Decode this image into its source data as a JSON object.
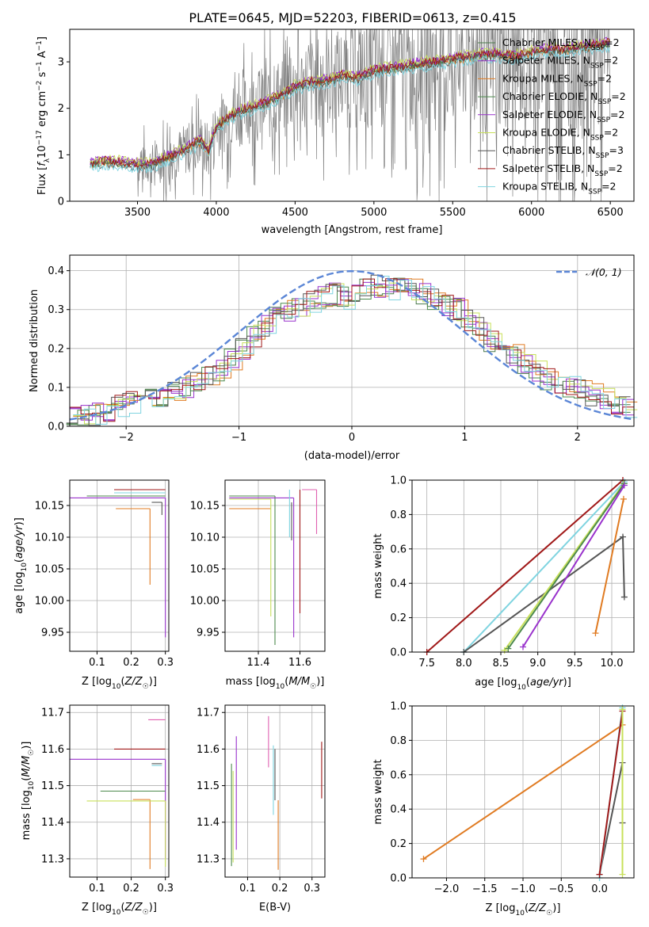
{
  "title": "PLATE=0645, MJD=52203, FIBERID=0613, z=0.415",
  "colors": {
    "Chabrier MILES": "#4a7a4a",
    "Salpeter MILES": "#9932cc",
    "Kroupa MILES": "#e07b22",
    "Chabrier ELODIE": "#4d8a4d",
    "Salpeter ELODIE": "#9932cc",
    "Kroupa ELODIE": "#c8e05a",
    "Chabrier STELIB": "#555555",
    "Salpeter STELIB": "#a01818",
    "Kroupa STELIB": "#7fd4e0",
    "data": "#808080",
    "normal": "#5b86d6",
    "pink": "#e060b0"
  },
  "chart_data": [
    {
      "type": "line",
      "title": "PLATE=0645, MJD=52203, FIBERID=0613, z=0.415",
      "xlabel": "wavelength [Angstrom, rest frame]",
      "ylabel": "Flux [f_λ 10^-17 erg cm^-2 s^-1 A^-1]",
      "xlim": [
        3070,
        6650
      ],
      "ylim": [
        0,
        3.7
      ],
      "xticks": [
        3500,
        4000,
        4500,
        5000,
        5500,
        6000,
        6500
      ],
      "yticks": [
        0,
        1,
        2,
        3
      ],
      "legend_position": "top-right",
      "legend": [
        "Chabrier MILES, N_SSP=2",
        "Salpeter MILES, N_SSP=2",
        "Kroupa MILES, N_SSP=2",
        "Chabrier ELODIE, N_SSP=2",
        "Salpeter ELODIE, N_SSP=2",
        "Kroupa ELODIE, N_SSP=2",
        "Chabrier STELIB, N_SSP=3",
        "Salpeter STELIB, N_SSP=2",
        "Kroupa STELIB, N_SSP=2"
      ],
      "model_continuum": {
        "x": [
          3200,
          3300,
          3400,
          3500,
          3600,
          3700,
          3800,
          3900,
          3950,
          4000,
          4100,
          4200,
          4300,
          4400,
          4500,
          4600,
          4700,
          4800,
          4900,
          5000,
          5100,
          5200,
          5300,
          5400,
          5500,
          5600,
          5700,
          5800,
          5900,
          6000,
          6100,
          6200,
          6300,
          6400,
          6500
        ],
        "y": [
          0.8,
          0.85,
          0.82,
          0.78,
          0.8,
          0.95,
          1.1,
          1.3,
          1.05,
          1.6,
          1.85,
          2.0,
          2.1,
          2.25,
          2.45,
          2.55,
          2.6,
          2.7,
          2.65,
          2.8,
          2.85,
          2.9,
          2.95,
          3.0,
          3.05,
          3.1,
          3.15,
          3.15,
          3.1,
          3.2,
          3.25,
          3.25,
          3.3,
          3.35,
          3.4
        ]
      }
    },
    {
      "type": "step",
      "xlabel": "(data-model)/error",
      "ylabel": "Normed distribution",
      "xlim": [
        -2.5,
        2.5
      ],
      "ylim": [
        0,
        0.44
      ],
      "xticks": [
        -2,
        -1,
        0,
        1,
        2
      ],
      "yticks": [
        0.0,
        0.1,
        0.2,
        0.3,
        0.4
      ],
      "legend": [
        "𝒩(0, 1)"
      ],
      "legend_position": "top-right",
      "bins": [
        -2.5,
        -2.4,
        -2.3,
        -2.2,
        -2.1,
        -2.0,
        -1.9,
        -1.8,
        -1.7,
        -1.6,
        -1.5,
        -1.4,
        -1.3,
        -1.2,
        -1.1,
        -1.0,
        -0.9,
        -0.8,
        -0.7,
        -0.6,
        -0.5,
        -0.4,
        -0.3,
        -0.2,
        -0.1,
        0.0,
        0.1,
        0.2,
        0.3,
        0.4,
        0.5,
        0.6,
        0.7,
        0.8,
        0.9,
        1.0,
        1.1,
        1.2,
        1.3,
        1.4,
        1.5,
        1.6,
        1.7,
        1.8,
        1.9,
        2.0,
        2.1,
        2.2,
        2.3,
        2.4,
        2.5
      ],
      "approx_hist": [
        0.02,
        0.025,
        0.03,
        0.04,
        0.05,
        0.06,
        0.06,
        0.07,
        0.08,
        0.09,
        0.1,
        0.12,
        0.13,
        0.14,
        0.17,
        0.2,
        0.23,
        0.26,
        0.28,
        0.3,
        0.31,
        0.32,
        0.33,
        0.34,
        0.33,
        0.34,
        0.35,
        0.36,
        0.35,
        0.36,
        0.35,
        0.34,
        0.33,
        0.31,
        0.3,
        0.27,
        0.25,
        0.22,
        0.2,
        0.18,
        0.16,
        0.14,
        0.12,
        0.11,
        0.1,
        0.09,
        0.08,
        0.07,
        0.06,
        0.05
      ]
    },
    {
      "type": "errorbar",
      "xlabel": "Z [log10(Z/Z☉)]",
      "ylabel": "age  [log10(age/yr)]",
      "xlim": [
        0.02,
        0.31
      ],
      "ylim": [
        9.92,
        10.19
      ],
      "xticks": [
        0.1,
        0.2,
        0.3
      ],
      "yticks": [
        9.95,
        10.0,
        10.05,
        10.1,
        10.15
      ],
      "points": [
        {
          "model": "Salpeter STELIB",
          "x": 0.3,
          "y": 10.175,
          "xerr_lo": 0.15,
          "yerr_lo": 0.0
        },
        {
          "model": "Kroupa STELIB",
          "x": 0.3,
          "y": 10.17,
          "xerr_lo": 0.15,
          "yerr_lo": 0.0
        },
        {
          "model": "Chabrier ELODIE",
          "x": 0.3,
          "y": 10.165,
          "xerr_lo": 0.23,
          "yerr_lo": 0.0
        },
        {
          "model": "Salpeter MILES",
          "x": 0.3,
          "y": 10.162,
          "xerr_lo": 0.28,
          "yerr_lo": 0.22
        },
        {
          "model": "Chabrier STELIB",
          "x": 0.29,
          "y": 10.155,
          "xerr_lo": 0.03,
          "yerr_lo": 0.02
        },
        {
          "model": "Kroupa MILES",
          "x": 0.255,
          "y": 10.145,
          "xerr_lo": 0.1,
          "yerr_lo": 0.12
        }
      ]
    },
    {
      "type": "errorbar",
      "xlabel": "mass [log10(M/M☉)]",
      "xlim": [
        11.24,
        11.72
      ],
      "ylim": [
        9.92,
        10.19
      ],
      "xticks": [
        11.4,
        11.6
      ],
      "yticks": [
        9.95,
        10.0,
        10.05,
        10.1,
        10.15
      ],
      "points": [
        {
          "model": "Kroupa MILES",
          "x": 11.46,
          "y": 10.145,
          "xerr_lo": 0.2,
          "yerr_lo": 0.0
        },
        {
          "model": "Chabrier ELODIE",
          "x": 11.48,
          "y": 10.165,
          "xerr_lo": 0.22,
          "yerr_lo": 0.235
        },
        {
          "model": "Kroupa ELODIE",
          "x": 11.46,
          "y": 10.16,
          "xerr_lo": 0.2,
          "yerr_lo": 0.185
        },
        {
          "model": "Salpeter ELODIE",
          "x": 11.57,
          "y": 10.162,
          "xerr_lo": 0.31,
          "yerr_lo": 0.22
        },
        {
          "model": "Salpeter STELIB",
          "x": 11.6,
          "y": 10.175,
          "xerr_lo": 0.0,
          "yerr_lo": 0.195
        },
        {
          "model": "Chabrier STELIB",
          "x": 11.56,
          "y": 10.155,
          "xerr_lo": 0.0,
          "yerr_lo": 0.06
        },
        {
          "model": "Kroupa STELIB",
          "x": 11.55,
          "y": 10.175,
          "xerr_lo": 0.0,
          "yerr_lo": 0.075
        },
        {
          "model": "pink",
          "x": 11.68,
          "y": 10.175,
          "xerr_lo": 0.07,
          "yerr_lo": 0.07
        }
      ]
    },
    {
      "type": "line",
      "xlabel": "age  [log10(age/yr)]",
      "ylabel": "mass weight",
      "xlim": [
        7.3,
        10.3
      ],
      "ylim": [
        0,
        1
      ],
      "xticks": [
        7.5,
        8.0,
        8.5,
        9.0,
        9.5,
        10.0
      ],
      "yticks": [
        0.0,
        0.2,
        0.4,
        0.6,
        0.8,
        1.0
      ],
      "series": [
        {
          "model": "Salpeter STELIB",
          "x": [
            7.5,
            10.15
          ],
          "y": [
            0.0,
            1.0
          ]
        },
        {
          "model": "Kroupa STELIB",
          "x": [
            8.0,
            10.17
          ],
          "y": [
            0.0,
            0.99
          ]
        },
        {
          "model": "Chabrier STELIB",
          "x": [
            8.0,
            10.15,
            10.17
          ],
          "y": [
            0.0,
            0.67,
            0.32
          ]
        },
        {
          "model": "Kroupa ELODIE",
          "x": [
            8.55,
            10.16
          ],
          "y": [
            0.01,
            0.98
          ]
        },
        {
          "model": "Chabrier ELODIE",
          "x": [
            8.6,
            10.17
          ],
          "y": [
            0.02,
            0.98
          ]
        },
        {
          "model": "Salpeter ELODIE",
          "x": [
            8.8,
            10.17
          ],
          "y": [
            0.03,
            0.97
          ]
        },
        {
          "model": "Kroupa MILES",
          "x": [
            9.78,
            10.16
          ],
          "y": [
            0.11,
            0.89
          ]
        }
      ]
    },
    {
      "type": "errorbar",
      "xlabel": "Z [log10(Z/Z☉)]",
      "ylabel": "mass [log10(M/M☉)]",
      "xlim": [
        0.02,
        0.31
      ],
      "ylim": [
        11.25,
        11.72
      ],
      "xticks": [
        0.1,
        0.2,
        0.3
      ],
      "yticks": [
        11.3,
        11.4,
        11.5,
        11.6,
        11.7
      ],
      "points": [
        {
          "model": "pink",
          "x": 0.3,
          "y": 11.68,
          "xerr_lo": 0.05,
          "yerr_lo": 0.0
        },
        {
          "model": "Salpeter STELIB",
          "x": 0.3,
          "y": 11.6,
          "xerr_lo": 0.15,
          "yerr_lo": 0.0
        },
        {
          "model": "Salpeter ELODIE",
          "x": 0.3,
          "y": 11.572,
          "xerr_lo": 0.28,
          "yerr_lo": 0.27
        },
        {
          "model": "Chabrier STELIB",
          "x": 0.29,
          "y": 11.56,
          "xerr_lo": 0.03,
          "yerr_lo": 0.0
        },
        {
          "model": "Kroupa STELIB",
          "x": 0.29,
          "y": 11.555,
          "xerr_lo": 0.03,
          "yerr_lo": 0.0
        },
        {
          "model": "Chabrier ELODIE",
          "x": 0.3,
          "y": 11.485,
          "xerr_lo": 0.19,
          "yerr_lo": 0.0
        },
        {
          "model": "Kroupa MILES",
          "x": 0.255,
          "y": 11.462,
          "xerr_lo": 0.05,
          "yerr_lo": 0.19
        },
        {
          "model": "Kroupa ELODIE",
          "x": 0.3,
          "y": 11.458,
          "xerr_lo": 0.23,
          "yerr_lo": 0.18
        }
      ]
    },
    {
      "type": "errorbar",
      "xlabel": "E(B-V)",
      "xlim": [
        0.03,
        0.34
      ],
      "ylim": [
        11.25,
        11.72
      ],
      "xticks": [
        0.1,
        0.2,
        0.3
      ],
      "yticks": [
        11.3,
        11.4,
        11.5,
        11.6,
        11.7
      ],
      "points": [
        {
          "model": "Chabrier ELODIE",
          "x": 0.05,
          "y": 11.56,
          "yerr_lo": 0.28
        },
        {
          "model": "Kroupa ELODIE",
          "x": 0.055,
          "y": 11.54,
          "yerr_lo": 0.25
        },
        {
          "model": "Salpeter ELODIE",
          "x": 0.065,
          "y": 11.635,
          "yerr_lo": 0.31
        },
        {
          "model": "pink",
          "x": 0.165,
          "y": 11.69,
          "yerr_lo": 0.14
        },
        {
          "model": "Kroupa STELIB",
          "x": 0.18,
          "y": 11.61,
          "yerr_lo": 0.19
        },
        {
          "model": "Chabrier STELIB",
          "x": 0.185,
          "y": 11.6,
          "yerr_lo": 0.14
        },
        {
          "model": "Kroupa MILES",
          "x": 0.195,
          "y": 11.46,
          "yerr_lo": 0.19
        },
        {
          "model": "Salpeter STELIB",
          "x": 0.33,
          "y": 11.62,
          "yerr_lo": 0.155
        }
      ]
    },
    {
      "type": "line",
      "xlabel": "Z [log10(Z/Z☉)]",
      "ylabel": "mass weight",
      "xlim": [
        -2.45,
        0.45
      ],
      "ylim": [
        0,
        1
      ],
      "xticks": [
        -2.0,
        -1.5,
        -1.0,
        -0.5,
        0.0
      ],
      "yticks": [
        0.0,
        0.2,
        0.4,
        0.6,
        0.8,
        1.0
      ],
      "series": [
        {
          "model": "Kroupa MILES",
          "x": [
            -2.3,
            0.3
          ],
          "y": [
            0.11,
            0.89
          ]
        },
        {
          "model": "Chabrier STELIB",
          "x": [
            0.0,
            0.3,
            0.3
          ],
          "y": [
            0.02,
            0.67,
            0.32
          ]
        },
        {
          "model": "Kroupa STELIB",
          "x": [
            0.0,
            0.3
          ],
          "y": [
            0.0,
            0.99
          ]
        },
        {
          "model": "Salpeter STELIB",
          "x": [
            0.0,
            0.3
          ],
          "y": [
            0.02,
            0.97
          ]
        },
        {
          "model": "Kroupa ELODIE",
          "x": [
            0.3,
            0.3
          ],
          "y": [
            0.02,
            0.98
          ]
        }
      ]
    }
  ],
  "labels": {
    "p1_xlabel": "wavelength [Angstrom, rest frame]",
    "p2_xlabel": "(data-model)/error",
    "p2_ylabel": "Normed distribution",
    "p2_legend": "𝒩(0, 1)",
    "p3_ylabel": "age  [log",
    "p4_ylabel": "mass weight",
    "p5_ylabel": "mass [log",
    "mass_weight": "mass weight",
    "ebv": "E(B-V)"
  }
}
